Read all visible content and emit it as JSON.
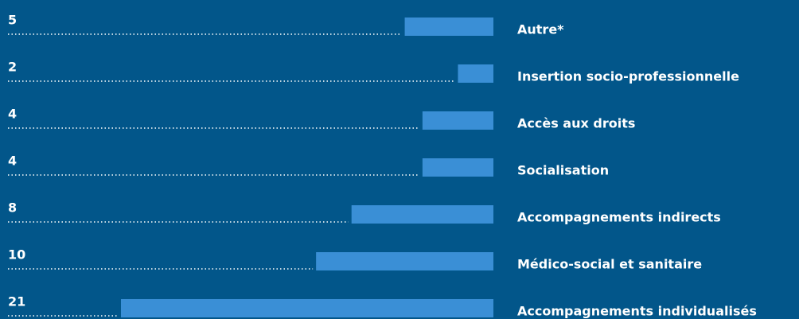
{
  "chart_data": {
    "type": "bar",
    "orientation": "horizontal",
    "categories": [
      "Autre*",
      "Insertion socio-professionnelle",
      "Accès aux droits",
      "Socialisation",
      "Accompagnements indirects",
      "Médico-social et sanitaire",
      "Accompagnements individualisés"
    ],
    "values": [
      5,
      2,
      4,
      4,
      8,
      10,
      21
    ],
    "color": "#3a8fd6"
  }
}
